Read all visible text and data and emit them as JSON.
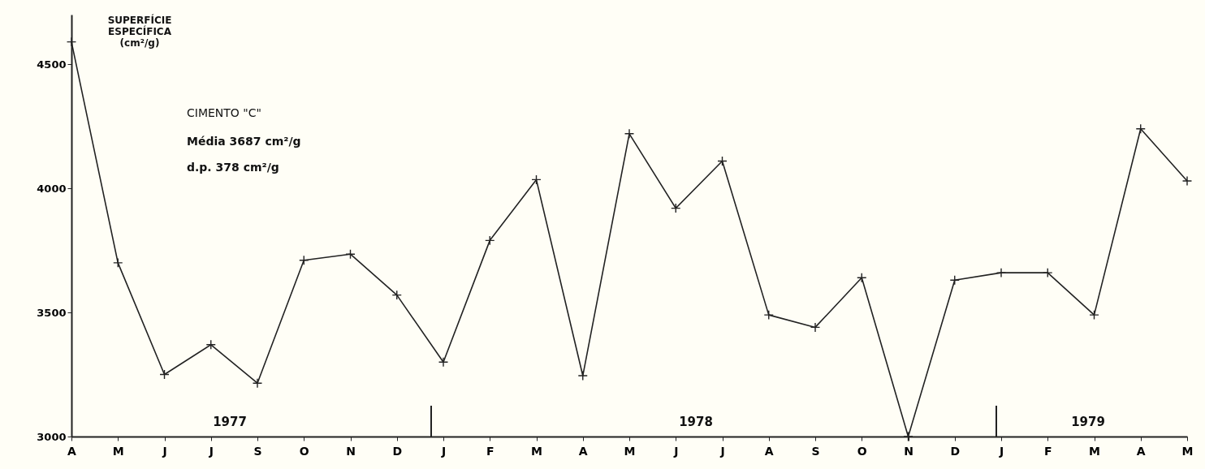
{
  "chart_data": {
    "type": "line",
    "ylabel": "SUPERFÍCIE ESPECÍFICA (cm²/g)",
    "categories": [
      "A",
      "M",
      "J",
      "J",
      "S",
      "O",
      "N",
      "D",
      "J",
      "F",
      "M",
      "A",
      "M",
      "J",
      "J",
      "A",
      "S",
      "O",
      "N",
      "D",
      "J",
      "F",
      "M",
      "A",
      "M"
    ],
    "series": [
      {
        "color": "#222222",
        "values": [
          4590,
          3700,
          3250,
          3370,
          3215,
          3710,
          3735,
          3570,
          3300,
          3790,
          4035,
          3245,
          4220,
          3920,
          4110,
          3490,
          3440,
          3640,
          3000,
          3630,
          3660,
          3660,
          3490,
          4240,
          4030
        ]
      }
    ],
    "ylim": [
      3000,
      4700
    ],
    "yticks": [
      3000,
      3500,
      4000,
      4500
    ],
    "annotations": [
      "CIMENTO \"C\"",
      "Média   3687 cm²/g",
      "d.p.         378 cm²/g",
      "1977",
      "1978",
      "1979"
    ],
    "marker": "cross",
    "line_style": "solid",
    "grid": false
  }
}
